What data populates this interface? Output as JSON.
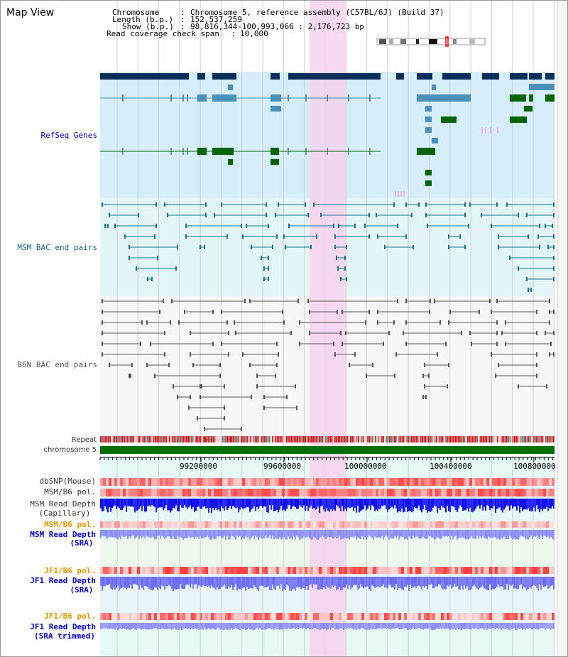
{
  "title": "Map View",
  "info": {
    "chromosome_label": "Chromosome",
    "chromosome_value": "Chromosome 5, reference assembly (C57BL/6J) (Build 37)",
    "length_label": "Length (b.p.)",
    "length_value": "152,537,259",
    "show_label": "Show (b.p.)",
    "show_value": "98,816,344-100,993,066 : 2,176,723 bp",
    "span_label": "Read coverage check span",
    "span_value": "10,000"
  },
  "tracks": {
    "refseq": "RefSeq Genes",
    "msm_bac": "MSM BAC end pairs",
    "b6n_bac": "B6N BAC end pairs",
    "repeat": "Repeat",
    "chromosome": "chromosome 5",
    "dbsnp": "dbSNP(Mouse)",
    "msm_b6_pol": "MSM/B6 pol.",
    "msm_depth_cap_1": "MSM Read Depth",
    "msm_depth_cap_2": "(Capillary)",
    "msm_b6_pol2": "MSM/B6 pol.",
    "msm_depth_sra_1": "MSM Read Depth",
    "msm_depth_sra_2": "(SRA)",
    "jf1_b6_pol": "JF1/B6 pol.",
    "jf1_depth_1": "JF1 Read Depth",
    "jf1_depth_2": "(SRA)",
    "jf1_b6_pol2": "JF1/B6 pol.",
    "jf1_depth_trim_1": "JF1 Read Depth",
    "jf1_depth_trim_2": "(SRA trimmed)"
  },
  "axis": {
    "ticks": [
      "99200000",
      "99600000",
      "100000000",
      "100400000",
      "100800000"
    ]
  },
  "colors": {
    "refseq_bg": "#d6eef9",
    "msm_bg": "#e2f6f8",
    "b6n_bg": "#f7f7f9",
    "highlight": "#f6d2ee",
    "gene_dark": "#0a2e5c",
    "gene_mid": "#4a8fb8",
    "gene_green": "#006400",
    "msm_pair": "#1a6f8a",
    "b6n_pair": "#555555",
    "chromosome_bar": "#007000",
    "repeat_red": "#cc2222",
    "repeat_grey": "#777777"
  }
}
